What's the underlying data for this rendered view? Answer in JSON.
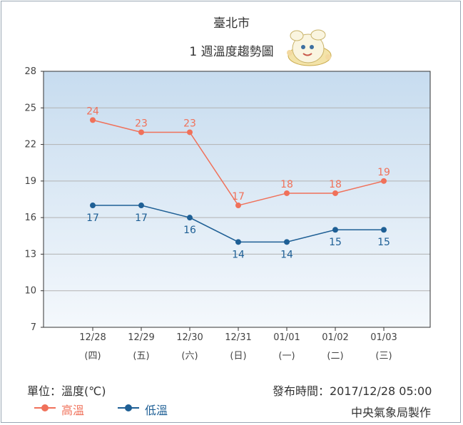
{
  "header": {
    "city": "臺北市",
    "subtitle": "1 週溫度趨勢圖"
  },
  "footer": {
    "unit": "單位：溫度(℃)",
    "published": "發布時間：2017/12/28 05:00",
    "maker": "中央氣象局製作"
  },
  "colors": {
    "high": "#f0715a",
    "low": "#1e5f95",
    "plot_top": "#c7dcef",
    "plot_bottom": "#f4f8fc",
    "grid": "#b2b2b2"
  },
  "icons": {
    "mascot": "weather-mascot-icon"
  },
  "chart_data": {
    "type": "line",
    "categories": [
      "12/28",
      "12/29",
      "12/30",
      "12/31",
      "01/01",
      "01/02",
      "01/03"
    ],
    "weekdays": [
      "(四)",
      "(五)",
      "(六)",
      "(日)",
      "(一)",
      "(二)",
      "(三)"
    ],
    "series": [
      {
        "name": "高溫",
        "values": [
          24,
          23,
          23,
          17,
          18,
          18,
          19
        ]
      },
      {
        "name": "低溫",
        "values": [
          17,
          17,
          16,
          14,
          14,
          15,
          15
        ]
      }
    ],
    "yticks": [
      7,
      10,
      13,
      16,
      19,
      22,
      25,
      28
    ],
    "ylim": [
      7,
      28
    ],
    "grid": true,
    "legend": "bottom-left"
  }
}
